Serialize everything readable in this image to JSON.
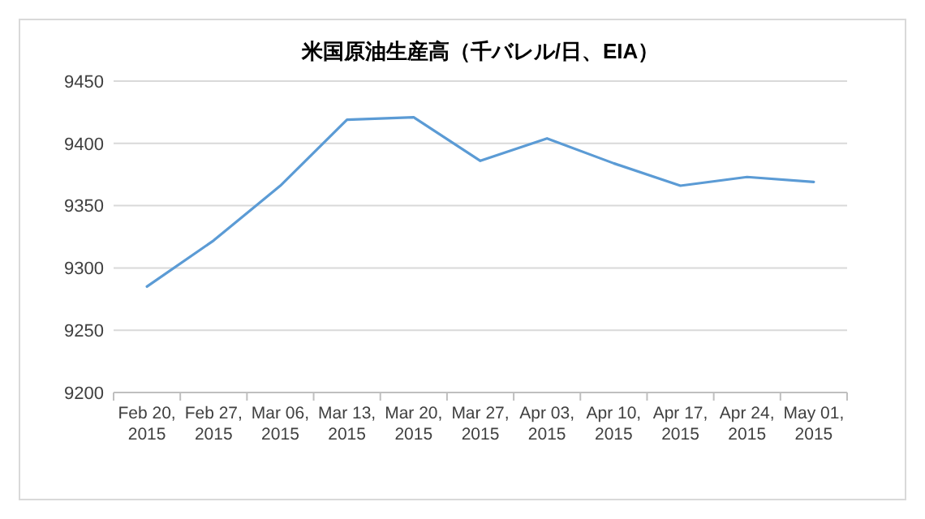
{
  "chart_data": {
    "type": "line",
    "title": "米国原油生産高（千バレル/日、EIA）",
    "categories": [
      "Feb 20, 2015",
      "Feb 27, 2015",
      "Mar 06, 2015",
      "Mar 13, 2015",
      "Mar 20, 2015",
      "Mar 27, 2015",
      "Apr 03, 2015",
      "Apr 10, 2015",
      "Apr 17, 2015",
      "Apr 24, 2015",
      "May 01, 2015"
    ],
    "series": [
      {
        "color": "#5b9bd5",
        "values": [
          9285,
          9322,
          9366,
          9419,
          9421,
          9386,
          9404,
          9384,
          9366,
          9373,
          9369
        ]
      }
    ],
    "ylim": [
      9200,
      9450
    ],
    "yticks": [
      9200,
      9250,
      9300,
      9350,
      9400,
      9450
    ],
    "grid": "y",
    "marker": "none",
    "line_style": "solid"
  }
}
